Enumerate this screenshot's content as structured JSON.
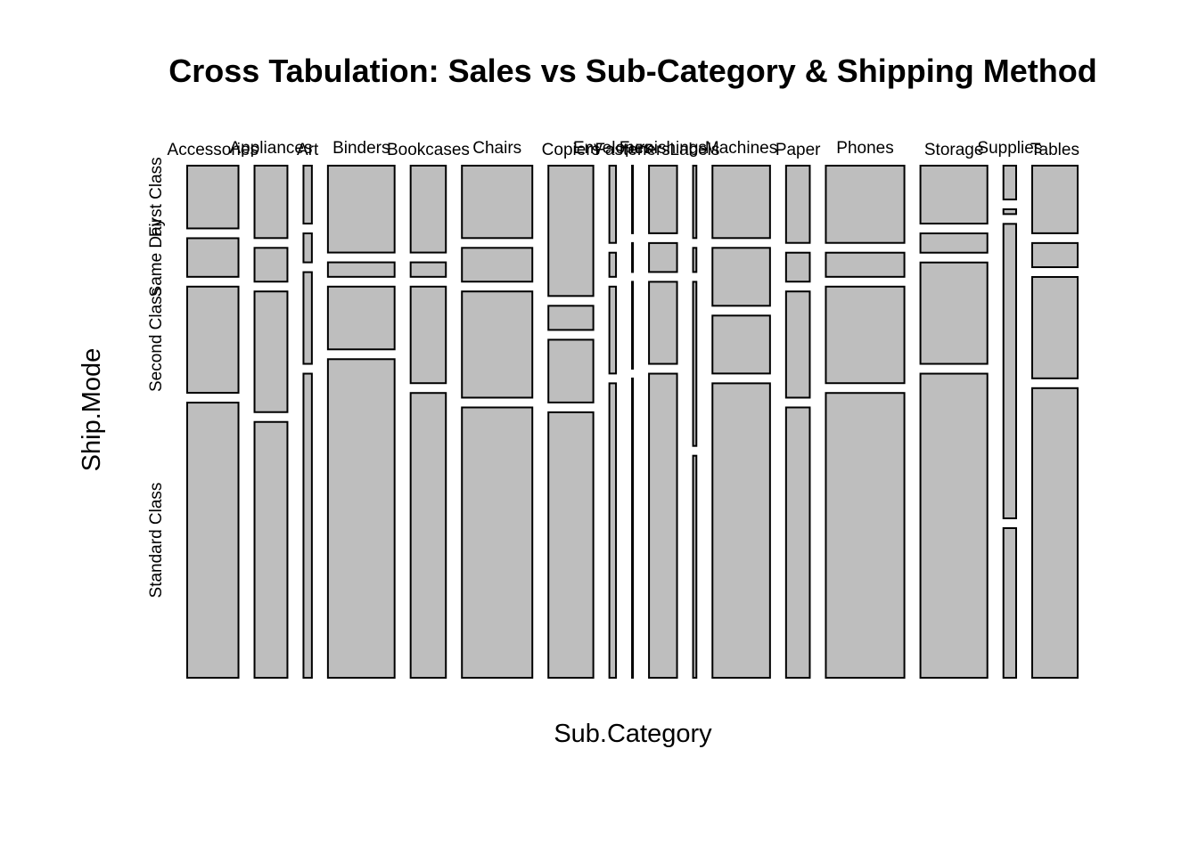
{
  "chart_data": {
    "type": "mosaic",
    "title": "Cross Tabulation: Sales vs Sub-Category & Shipping Method",
    "xlabel": "Sub.Category",
    "ylabel": "Ship.Mode",
    "fill_color": "#bebebe",
    "stroke_color": "#000000",
    "categories": [
      "Accessories",
      "Appliances",
      "Art",
      "Binders",
      "Bookcases",
      "Chairs",
      "Copiers",
      "Envelopes",
      "Fasteners",
      "Furnishings",
      "Labels",
      "Machines",
      "Paper",
      "Phones",
      "Storage",
      "Supplies",
      "Tables"
    ],
    "category_label_text": [
      "Accessories",
      "Appliances",
      "Art",
      "Binders",
      "Bookcases",
      "Chairs",
      "Copiers",
      "Envelopes",
      "Fasteners",
      "Furnishings",
      "Labels",
      "Machines",
      "Paper",
      "Phones",
      "Storage",
      "Supplies",
      "Tables"
    ],
    "ship_modes": [
      "First Class",
      "Same Day",
      "Second Class",
      "Standard Class"
    ],
    "row_label_text": [
      "First Class",
      "Same Day",
      "Second Class",
      "Standard Class"
    ],
    "column_share_of_sales": [
      0.0726,
      0.0466,
      0.0119,
      0.0944,
      0.0499,
      0.0997,
      0.0636,
      0.0094,
      0.0013,
      0.0397,
      0.0047,
      0.0815,
      0.0336,
      0.1112,
      0.0948,
      0.018,
      0.0644
    ],
    "ship_mode_share_by_category": [
      [
        0.13,
        0.08,
        0.22,
        0.57
      ],
      [
        0.15,
        0.07,
        0.25,
        0.53
      ],
      [
        0.12,
        0.06,
        0.19,
        0.63
      ],
      [
        0.18,
        0.03,
        0.13,
        0.66
      ],
      [
        0.18,
        0.03,
        0.2,
        0.59
      ],
      [
        0.15,
        0.07,
        0.22,
        0.56
      ],
      [
        0.27,
        0.05,
        0.13,
        0.55
      ],
      [
        0.16,
        0.05,
        0.18,
        0.61
      ],
      [
        0.14,
        0.06,
        0.18,
        0.62
      ],
      [
        0.14,
        0.06,
        0.17,
        0.63
      ],
      [
        0.15,
        0.05,
        0.34,
        0.46
      ],
      [
        0.15,
        0.12,
        0.12,
        0.61
      ],
      [
        0.16,
        0.06,
        0.22,
        0.56
      ],
      [
        0.16,
        0.05,
        0.2,
        0.59
      ],
      [
        0.12,
        0.04,
        0.21,
        0.63
      ],
      [
        0.07,
        0.01,
        0.61,
        0.31
      ],
      [
        0.14,
        0.05,
        0.21,
        0.6
      ]
    ]
  }
}
